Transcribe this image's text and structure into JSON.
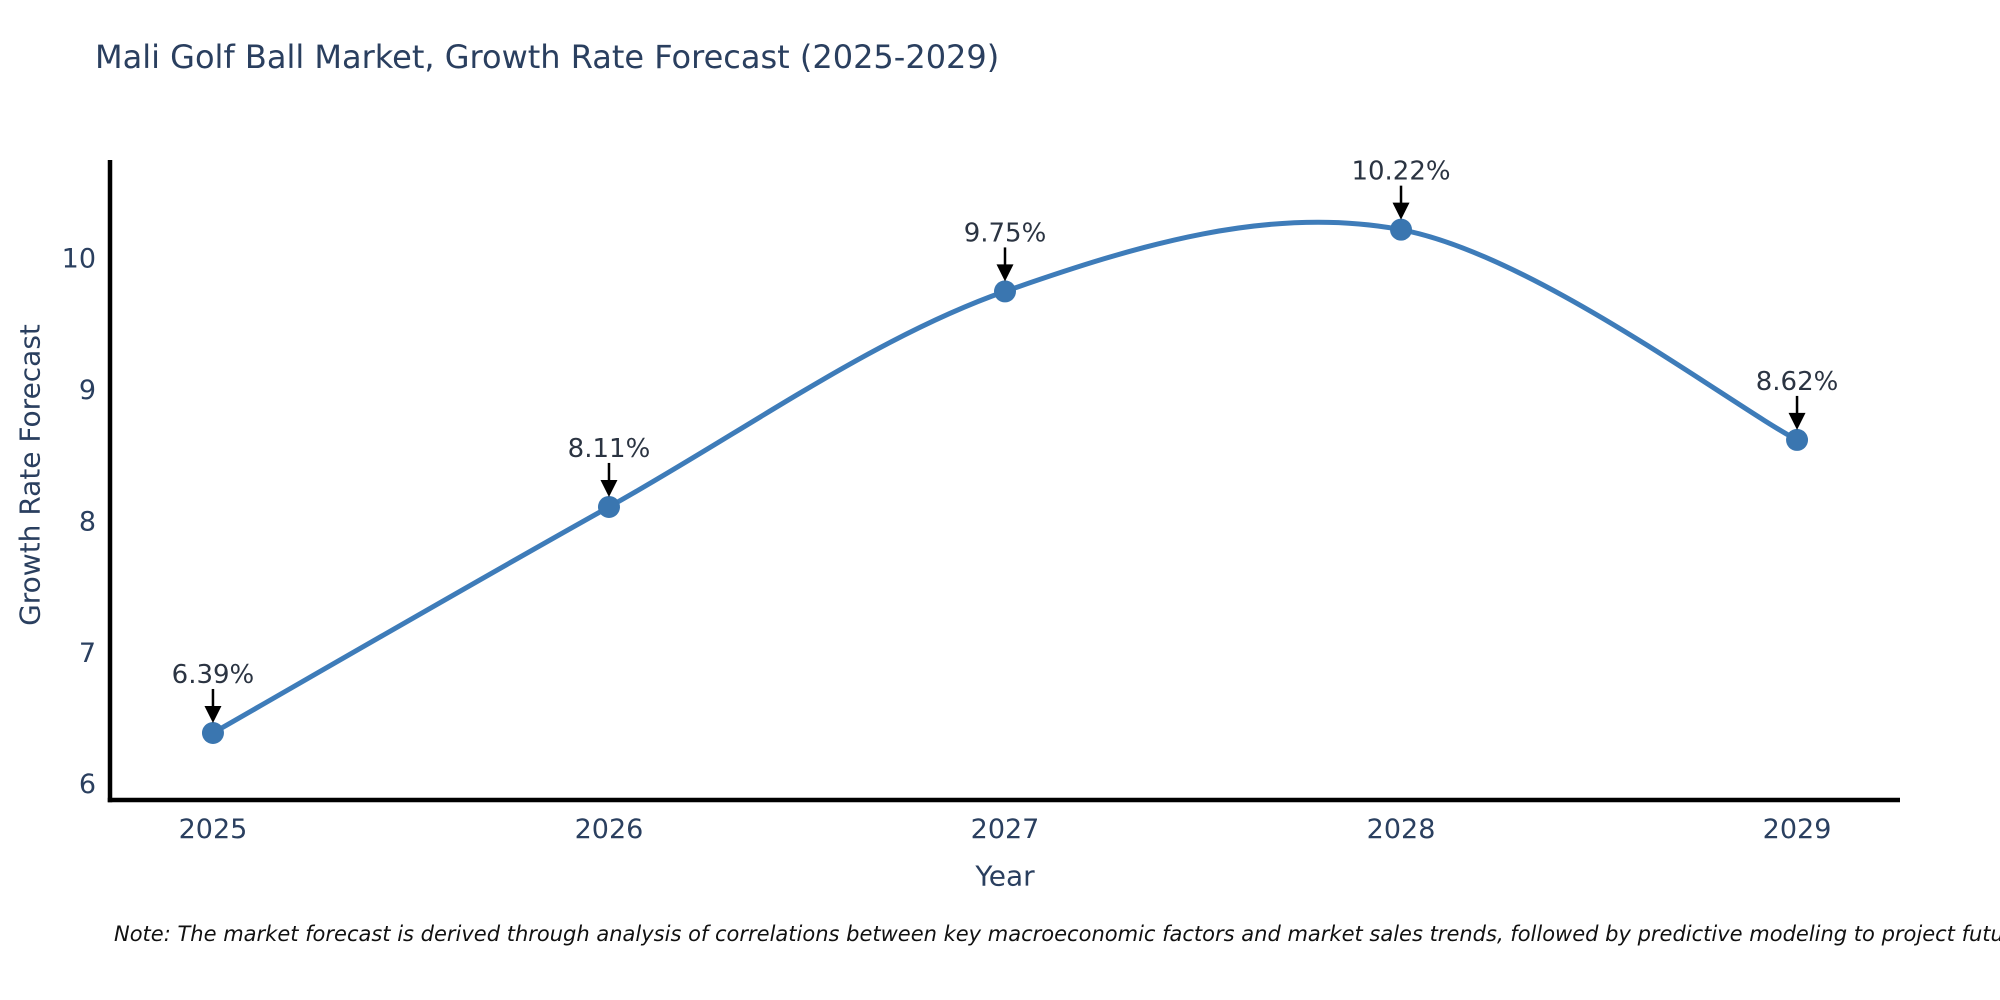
{
  "chart_data": {
    "type": "line",
    "title": "Mali Golf Ball Market, Growth Rate Forecast (2025-2029)",
    "xlabel": "Year",
    "ylabel": "Growth Rate Forecast",
    "x": [
      2025,
      2026,
      2027,
      2028,
      2029
    ],
    "y": [
      6.39,
      8.11,
      9.75,
      10.22,
      8.62
    ],
    "point_labels": [
      "6.39%",
      "8.11%",
      "9.75%",
      "10.22%",
      "8.62%"
    ],
    "yticks": [
      6,
      7,
      8,
      9,
      10
    ],
    "xticks": [
      2025,
      2026,
      2027,
      2028,
      2029
    ],
    "xlim": [
      2024.74,
      2029.26
    ],
    "ylim": [
      5.88,
      10.75
    ],
    "line_shape": "spline",
    "legend": "none",
    "grid": false,
    "colors": {
      "line": "#3e7cb9",
      "marker": "#3a76b0",
      "axis": "#000000",
      "tick_text": "#2a3f5f",
      "annotation_text": "#2b3442",
      "arrow": "#000000",
      "background": "#ffffff"
    },
    "note": "Note: The market forecast is derived through analysis of correlations between key macroeconomic factors and market sales trends, followed by predictive modeling to project future sales."
  }
}
